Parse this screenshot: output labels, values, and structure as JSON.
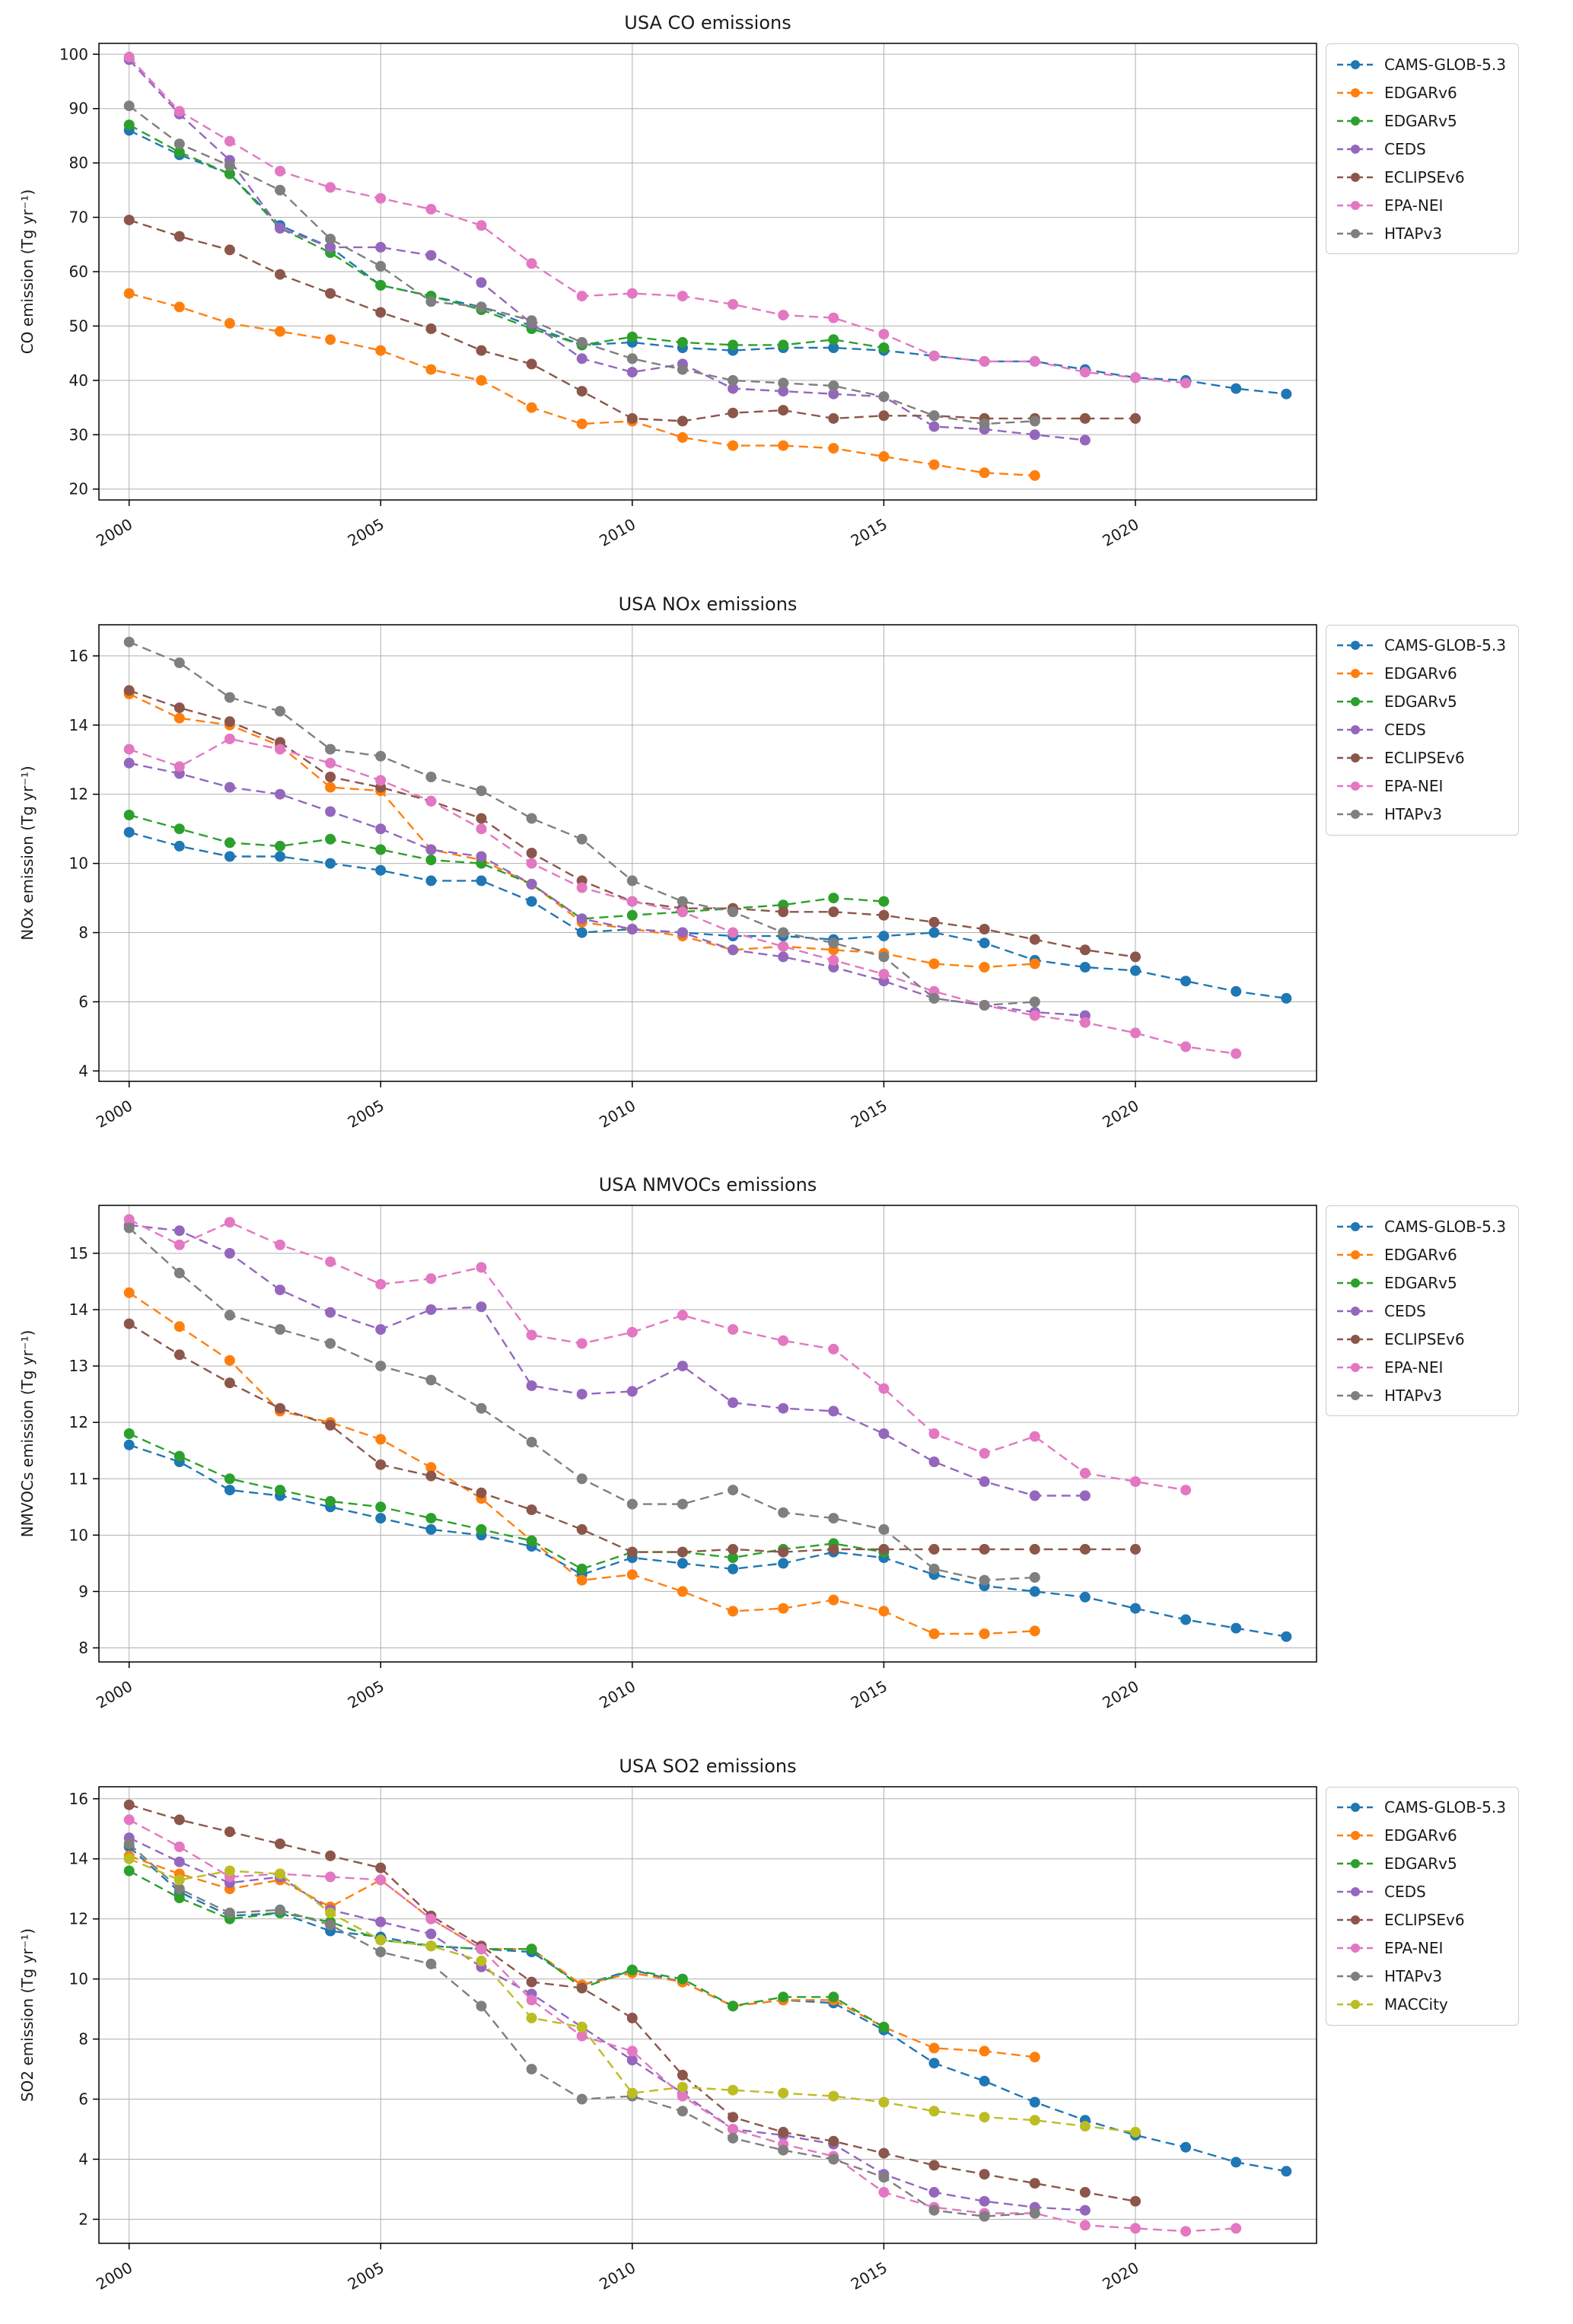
{
  "page": {
    "background": "#ffffff"
  },
  "chart_data": [
    {
      "type": "line",
      "title": "USA CO emissions",
      "xlabel": "",
      "ylabel": "CO emission (Tg yr⁻¹)",
      "x_start": 2000,
      "x_step": 1,
      "xlim": [
        1999.4,
        2023.6
      ],
      "ylim": [
        18,
        102
      ],
      "xticks": [
        2000,
        2005,
        2010,
        2015,
        2020
      ],
      "yticks": [
        20,
        30,
        40,
        50,
        60,
        70,
        80,
        90,
        100
      ],
      "grid": true,
      "legend_position": "outside-right",
      "line_style": "dashed-with-circle-markers",
      "series": [
        {
          "name": "CAMS-GLOB-5.3",
          "color": "#1f77b4",
          "values": [
            86,
            81.5,
            78,
            68.5,
            64.5,
            57.5,
            55.5,
            53.5,
            50,
            46.5,
            47,
            46,
            45.5,
            46,
            46,
            45.5,
            44.5,
            43.5,
            43.5,
            42,
            40.5,
            40,
            38.5,
            37.5
          ]
        },
        {
          "name": "EDGARv6",
          "color": "#ff7f0e",
          "values": [
            56,
            53.5,
            50.5,
            49,
            47.5,
            45.5,
            42,
            40,
            35,
            32,
            32.5,
            29.5,
            28,
            28,
            27.5,
            26,
            24.5,
            23,
            22.5
          ]
        },
        {
          "name": "EDGARv5",
          "color": "#2ca02c",
          "values": [
            87,
            82,
            78,
            68,
            63.5,
            57.5,
            55.5,
            53,
            49.5,
            46.5,
            48,
            47,
            46.5,
            46.5,
            47.5,
            46
          ]
        },
        {
          "name": "CEDS",
          "color": "#9467bd",
          "values": [
            99,
            89,
            80.5,
            68,
            64.5,
            64.5,
            63,
            58,
            50.5,
            44,
            41.5,
            43,
            38.5,
            38,
            37.5,
            37,
            31.5,
            31,
            30,
            29
          ]
        },
        {
          "name": "ECLIPSEv6",
          "color": "#8c564b",
          "values": [
            69.5,
            66.5,
            64,
            59.5,
            56,
            52.5,
            49.5,
            45.5,
            43,
            38,
            33,
            32.5,
            34,
            34.5,
            33,
            33.5,
            33.5,
            33,
            33,
            33,
            33
          ]
        },
        {
          "name": "EPA-NEI",
          "color": "#e377c2",
          "values": [
            99.5,
            89.5,
            84,
            78.5,
            75.5,
            73.5,
            71.5,
            68.5,
            61.5,
            55.5,
            56,
            55.5,
            54,
            52,
            51.5,
            48.5,
            44.5,
            43.5,
            43.5,
            41.5,
            40.5,
            39.5
          ]
        },
        {
          "name": "HTAPv3",
          "color": "#7f7f7f",
          "values": [
            90.5,
            83.5,
            79.5,
            75,
            66,
            61,
            54.5,
            53.5,
            51,
            47,
            44,
            42,
            40,
            39.5,
            39,
            37,
            33.5,
            32,
            32.5
          ]
        }
      ]
    },
    {
      "type": "line",
      "title": "USA NOx emissions",
      "xlabel": "",
      "ylabel": "NOx emission (Tg yr⁻¹)",
      "x_start": 2000,
      "x_step": 1,
      "xlim": [
        1999.4,
        2023.6
      ],
      "ylim": [
        3.7,
        16.9
      ],
      "xticks": [
        2000,
        2005,
        2010,
        2015,
        2020
      ],
      "yticks": [
        4,
        6,
        8,
        10,
        12,
        14,
        16
      ],
      "grid": true,
      "legend_position": "outside-right",
      "line_style": "dashed-with-circle-markers",
      "series": [
        {
          "name": "CAMS-GLOB-5.3",
          "color": "#1f77b4",
          "values": [
            10.9,
            10.5,
            10.2,
            10.2,
            10,
            9.8,
            9.5,
            9.5,
            8.9,
            8,
            8.1,
            8,
            7.9,
            7.9,
            7.8,
            7.9,
            8,
            7.7,
            7.2,
            7,
            6.9,
            6.6,
            6.3,
            6.1
          ]
        },
        {
          "name": "EDGARv6",
          "color": "#ff7f0e",
          "values": [
            14.9,
            14.2,
            14,
            13.4,
            12.2,
            12.1,
            10.4,
            10.1,
            9.4,
            8.3,
            8.1,
            7.9,
            7.5,
            7.6,
            7.5,
            7.4,
            7.1,
            7,
            7.1
          ]
        },
        {
          "name": "EDGARv5",
          "color": "#2ca02c",
          "values": [
            11.4,
            11,
            10.6,
            10.5,
            10.7,
            10.4,
            10.1,
            10,
            9.4,
            8.4,
            8.5,
            8.6,
            8.7,
            8.8,
            9,
            8.9
          ]
        },
        {
          "name": "CEDS",
          "color": "#9467bd",
          "values": [
            12.9,
            12.6,
            12.2,
            12,
            11.5,
            11,
            10.4,
            10.2,
            9.4,
            8.4,
            8.1,
            8,
            7.5,
            7.3,
            7,
            6.6,
            6.1,
            5.9,
            5.7,
            5.6
          ]
        },
        {
          "name": "ECLIPSEv6",
          "color": "#8c564b",
          "values": [
            15,
            14.5,
            14.1,
            13.5,
            12.5,
            12.2,
            11.8,
            11.3,
            10.3,
            9.5,
            8.9,
            8.7,
            8.7,
            8.6,
            8.6,
            8.5,
            8.3,
            8.1,
            7.8,
            7.5,
            7.3
          ]
        },
        {
          "name": "EPA-NEI",
          "color": "#e377c2",
          "values": [
            13.3,
            12.8,
            13.6,
            13.3,
            12.9,
            12.4,
            11.8,
            11,
            10,
            9.3,
            8.9,
            8.6,
            8,
            7.6,
            7.2,
            6.8,
            6.3,
            5.9,
            5.6,
            5.4,
            5.1,
            4.7,
            4.5
          ]
        },
        {
          "name": "HTAPv3",
          "color": "#7f7f7f",
          "values": [
            16.4,
            15.8,
            14.8,
            14.4,
            13.3,
            13.1,
            12.5,
            12.1,
            11.3,
            10.7,
            9.5,
            8.9,
            8.6,
            8,
            7.7,
            7.3,
            6.1,
            5.9,
            6
          ]
        }
      ]
    },
    {
      "type": "line",
      "title": "USA NMVOCs emissions",
      "xlabel": "",
      "ylabel": "NMVOCs emission (Tg yr⁻¹)",
      "x_start": 2000,
      "x_step": 1,
      "xlim": [
        1999.4,
        2023.6
      ],
      "ylim": [
        7.75,
        15.85
      ],
      "xticks": [
        2000,
        2005,
        2010,
        2015,
        2020
      ],
      "yticks": [
        8,
        9,
        10,
        11,
        12,
        13,
        14,
        15
      ],
      "grid": true,
      "legend_position": "outside-right",
      "line_style": "dashed-with-circle-markers",
      "series": [
        {
          "name": "CAMS-GLOB-5.3",
          "color": "#1f77b4",
          "values": [
            11.6,
            11.3,
            10.8,
            10.7,
            10.5,
            10.3,
            10.1,
            10,
            9.8,
            9.3,
            9.6,
            9.5,
            9.4,
            9.5,
            9.7,
            9.6,
            9.3,
            9.1,
            9,
            8.9,
            8.7,
            8.5,
            8.35,
            8.2
          ]
        },
        {
          "name": "EDGARv6",
          "color": "#ff7f0e",
          "values": [
            14.3,
            13.7,
            13.1,
            12.2,
            12,
            11.7,
            11.2,
            10.65,
            9.9,
            9.2,
            9.3,
            9,
            8.65,
            8.7,
            8.85,
            8.65,
            8.25,
            8.25,
            8.3
          ]
        },
        {
          "name": "EDGARv5",
          "color": "#2ca02c",
          "values": [
            11.8,
            11.4,
            11,
            10.8,
            10.6,
            10.5,
            10.3,
            10.1,
            9.9,
            9.4,
            9.7,
            9.7,
            9.6,
            9.75,
            9.85,
            9.7
          ]
        },
        {
          "name": "CEDS",
          "color": "#9467bd",
          "values": [
            15.5,
            15.4,
            15,
            14.35,
            13.95,
            13.65,
            14,
            14.05,
            12.65,
            12.5,
            12.55,
            13,
            12.35,
            12.25,
            12.2,
            11.8,
            11.3,
            10.95,
            10.7,
            10.7
          ]
        },
        {
          "name": "ECLIPSEv6",
          "color": "#8c564b",
          "values": [
            13.75,
            13.2,
            12.7,
            12.25,
            11.95,
            11.25,
            11.05,
            10.75,
            10.45,
            10.1,
            9.7,
            9.7,
            9.75,
            9.7,
            9.75,
            9.75,
            9.75,
            9.75,
            9.75,
            9.75,
            9.75
          ]
        },
        {
          "name": "EPA-NEI",
          "color": "#e377c2",
          "values": [
            15.6,
            15.15,
            15.55,
            15.15,
            14.85,
            14.45,
            14.55,
            14.75,
            13.55,
            13.4,
            13.6,
            13.9,
            13.65,
            13.45,
            13.3,
            12.6,
            11.8,
            11.45,
            11.75,
            11.1,
            10.95,
            10.8
          ]
        },
        {
          "name": "HTAPv3",
          "color": "#7f7f7f",
          "values": [
            15.45,
            14.65,
            13.9,
            13.65,
            13.4,
            13,
            12.75,
            12.25,
            11.65,
            11,
            10.55,
            10.55,
            10.8,
            10.4,
            10.3,
            10.1,
            9.4,
            9.2,
            9.25
          ]
        }
      ]
    },
    {
      "type": "line",
      "title": "USA SO2 emissions",
      "xlabel": "",
      "ylabel": "SO2 emission (Tg yr⁻¹)",
      "x_start": 2000,
      "x_step": 1,
      "xlim": [
        1999.4,
        2023.6
      ],
      "ylim": [
        1.2,
        16.4
      ],
      "xticks": [
        2000,
        2005,
        2010,
        2015,
        2020
      ],
      "yticks": [
        2,
        4,
        6,
        8,
        10,
        12,
        14,
        16
      ],
      "grid": true,
      "legend_position": "outside-right",
      "line_style": "dashed-with-circle-markers",
      "series": [
        {
          "name": "CAMS-GLOB-5.3",
          "color": "#1f77b4",
          "values": [
            14.4,
            12.9,
            12.1,
            12.2,
            11.6,
            11.4,
            11.1,
            11,
            10.9,
            9.8,
            10.3,
            9.9,
            9.1,
            9.3,
            9.2,
            8.3,
            7.2,
            6.6,
            5.9,
            5.3,
            4.8,
            4.4,
            3.9,
            3.6
          ]
        },
        {
          "name": "EDGARv6",
          "color": "#ff7f0e",
          "values": [
            14.1,
            13.5,
            13,
            13.3,
            12.4,
            13.3,
            12,
            11,
            11,
            9.8,
            10.2,
            9.9,
            9.1,
            9.3,
            9.3,
            8.4,
            7.7,
            7.6,
            7.4
          ]
        },
        {
          "name": "EDGARv5",
          "color": "#2ca02c",
          "values": [
            13.6,
            12.7,
            12,
            12.2,
            11.9,
            11.3,
            11.1,
            11,
            11,
            9.7,
            10.3,
            10,
            9.1,
            9.4,
            9.4,
            8.4
          ]
        },
        {
          "name": "CEDS",
          "color": "#9467bd",
          "values": [
            14.7,
            13.9,
            13.2,
            13.4,
            12.3,
            11.9,
            11.5,
            10.4,
            9.5,
            8.4,
            7.3,
            6.2,
            5,
            4.8,
            4.5,
            3.5,
            2.9,
            2.6,
            2.4,
            2.3
          ]
        },
        {
          "name": "ECLIPSEv6",
          "color": "#8c564b",
          "values": [
            15.8,
            15.3,
            14.9,
            14.5,
            14.1,
            13.7,
            12.1,
            11.1,
            9.9,
            9.7,
            8.7,
            6.8,
            5.4,
            4.9,
            4.6,
            4.2,
            3.8,
            3.5,
            3.2,
            2.9,
            2.6
          ]
        },
        {
          "name": "EPA-NEI",
          "color": "#e377c2",
          "values": [
            15.3,
            14.4,
            13.4,
            13.5,
            13.4,
            13.3,
            12,
            11,
            9.3,
            8.1,
            7.6,
            6.1,
            5,
            4.5,
            4.1,
            2.9,
            2.4,
            2.2,
            2.2,
            1.8,
            1.7,
            1.6,
            1.7
          ]
        },
        {
          "name": "HTAPv3",
          "color": "#7f7f7f",
          "values": [
            14.5,
            13,
            12.2,
            12.3,
            11.8,
            10.9,
            10.5,
            9.1,
            7,
            6,
            6.1,
            5.6,
            4.7,
            4.3,
            4,
            3.4,
            2.3,
            2.1,
            2.2
          ]
        },
        {
          "name": "MACCity",
          "color": "#bcbd22",
          "values": [
            14,
            13.3,
            13.6,
            13.5,
            12.2,
            11.3,
            11.1,
            10.6,
            8.7,
            8.4,
            6.2,
            6.4,
            6.3,
            6.2,
            6.1,
            5.9,
            5.6,
            5.4,
            5.3,
            5.1,
            4.9
          ]
        }
      ]
    }
  ]
}
